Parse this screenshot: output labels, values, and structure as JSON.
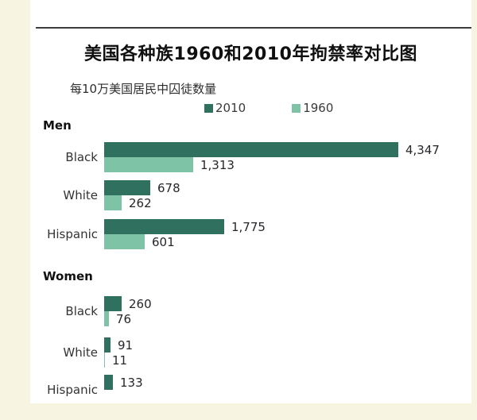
{
  "page": {
    "background_color": "#f7f4e2",
    "panel_color": "#ffffff",
    "rule_color": "#3d3d3d"
  },
  "chart_data": {
    "type": "bar",
    "orientation": "horizontal",
    "title": "美国各种族1960和2010年拘禁率对比图",
    "subtitle": "每10万美国居民中囚徒数量",
    "legend_position": "top",
    "grid": false,
    "xlim": [
      0,
      4347
    ],
    "legend": [
      {
        "label": "2010",
        "color": "#2f705f"
      },
      {
        "label": "1960",
        "color": "#7fc3a6"
      }
    ],
    "groups": [
      {
        "label": "Men",
        "rows": [
          {
            "category": "Black",
            "bars": [
              {
                "series": "2010",
                "value": 4347,
                "label": "4,347"
              },
              {
                "series": "1960",
                "value": 1313,
                "label": "1,313"
              }
            ]
          },
          {
            "category": "White",
            "bars": [
              {
                "series": "2010",
                "value": 678,
                "label": "678"
              },
              {
                "series": "1960",
                "value": 262,
                "label": "262"
              }
            ]
          },
          {
            "category": "Hispanic",
            "bars": [
              {
                "series": "2010",
                "value": 1775,
                "label": "1,775"
              },
              {
                "series": "1960",
                "value": 601,
                "label": "601"
              }
            ]
          }
        ]
      },
      {
        "label": "Women",
        "rows": [
          {
            "category": "Black",
            "bars": [
              {
                "series": "2010",
                "value": 260,
                "label": "260"
              },
              {
                "series": "1960",
                "value": 76,
                "label": "76"
              }
            ]
          },
          {
            "category": "White",
            "bars": [
              {
                "series": "2010",
                "value": 91,
                "label": "91"
              },
              {
                "series": "1960",
                "value": 11,
                "label": "11"
              }
            ]
          },
          {
            "category": "Hispanic",
            "bars": [
              {
                "series": "2010",
                "value": 133,
                "label": "133"
              }
            ],
            "note": "1960 bar cut off at bottom edge of image"
          }
        ]
      }
    ]
  }
}
